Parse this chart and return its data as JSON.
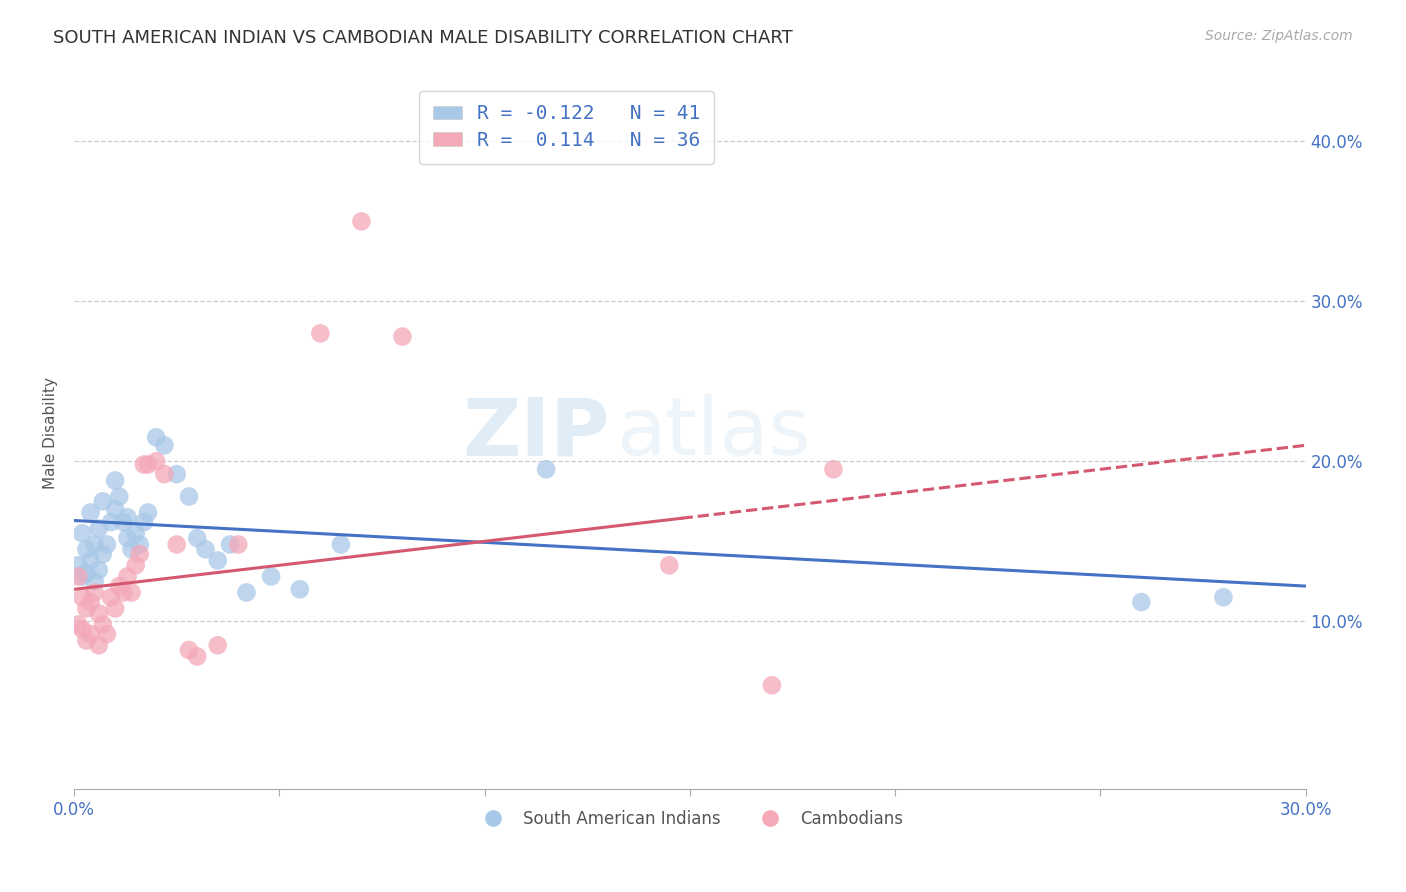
{
  "title": "SOUTH AMERICAN INDIAN VS CAMBODIAN MALE DISABILITY CORRELATION CHART",
  "source": "Source: ZipAtlas.com",
  "ylabel": "Male Disability",
  "xlim": [
    0.0,
    0.3
  ],
  "ylim": [
    -0.005,
    0.44
  ],
  "xticks": [
    0.0,
    0.05,
    0.1,
    0.15,
    0.2,
    0.25,
    0.3
  ],
  "yticks": [
    0.1,
    0.2,
    0.3,
    0.4
  ],
  "ytick_labels": [
    "10.0%",
    "20.0%",
    "30.0%",
    "40.0%"
  ],
  "xtick_labels": [
    "0.0%",
    "",
    "",
    "",
    "",
    "",
    "30.0%"
  ],
  "blue_R": -0.122,
  "blue_N": 41,
  "pink_R": 0.114,
  "pink_N": 36,
  "blue_color": "#a8c8e8",
  "pink_color": "#f4a8b8",
  "blue_line_color": "#4472c4",
  "pink_line_color": "#d45870",
  "watermark_left": "ZIP",
  "watermark_right": "atlas",
  "blue_legend_label": "South American Indians",
  "pink_legend_label": "Cambodians",
  "blue_x": [
    0.001,
    0.002,
    0.002,
    0.003,
    0.003,
    0.004,
    0.004,
    0.005,
    0.005,
    0.006,
    0.006,
    0.007,
    0.007,
    0.008,
    0.009,
    0.01,
    0.01,
    0.011,
    0.012,
    0.013,
    0.013,
    0.014,
    0.015,
    0.016,
    0.017,
    0.018,
    0.02,
    0.022,
    0.025,
    0.028,
    0.03,
    0.032,
    0.035,
    0.038,
    0.042,
    0.048,
    0.055,
    0.065,
    0.115,
    0.26,
    0.28
  ],
  "blue_y": [
    0.135,
    0.128,
    0.155,
    0.13,
    0.145,
    0.138,
    0.168,
    0.125,
    0.148,
    0.132,
    0.158,
    0.142,
    0.175,
    0.148,
    0.162,
    0.17,
    0.188,
    0.178,
    0.162,
    0.165,
    0.152,
    0.145,
    0.155,
    0.148,
    0.162,
    0.168,
    0.215,
    0.21,
    0.192,
    0.178,
    0.152,
    0.145,
    0.138,
    0.148,
    0.118,
    0.128,
    0.12,
    0.148,
    0.195,
    0.112,
    0.115
  ],
  "pink_x": [
    0.001,
    0.001,
    0.002,
    0.002,
    0.003,
    0.003,
    0.004,
    0.004,
    0.005,
    0.006,
    0.006,
    0.007,
    0.008,
    0.009,
    0.01,
    0.011,
    0.012,
    0.013,
    0.014,
    0.015,
    0.016,
    0.017,
    0.018,
    0.02,
    0.022,
    0.025,
    0.028,
    0.03,
    0.035,
    0.04,
    0.06,
    0.07,
    0.08,
    0.145,
    0.17,
    0.185
  ],
  "pink_y": [
    0.128,
    0.098,
    0.115,
    0.095,
    0.108,
    0.088,
    0.112,
    0.092,
    0.118,
    0.105,
    0.085,
    0.098,
    0.092,
    0.115,
    0.108,
    0.122,
    0.118,
    0.128,
    0.118,
    0.135,
    0.142,
    0.198,
    0.198,
    0.2,
    0.192,
    0.148,
    0.082,
    0.078,
    0.085,
    0.148,
    0.28,
    0.35,
    0.278,
    0.135,
    0.06,
    0.195
  ],
  "blue_line_x0": 0.0,
  "blue_line_y0": 0.163,
  "blue_line_x1": 0.3,
  "blue_line_y1": 0.122,
  "pink_line_x0": 0.0,
  "pink_line_y0": 0.12,
  "pink_line_x1": 0.3,
  "pink_line_y1": 0.21
}
